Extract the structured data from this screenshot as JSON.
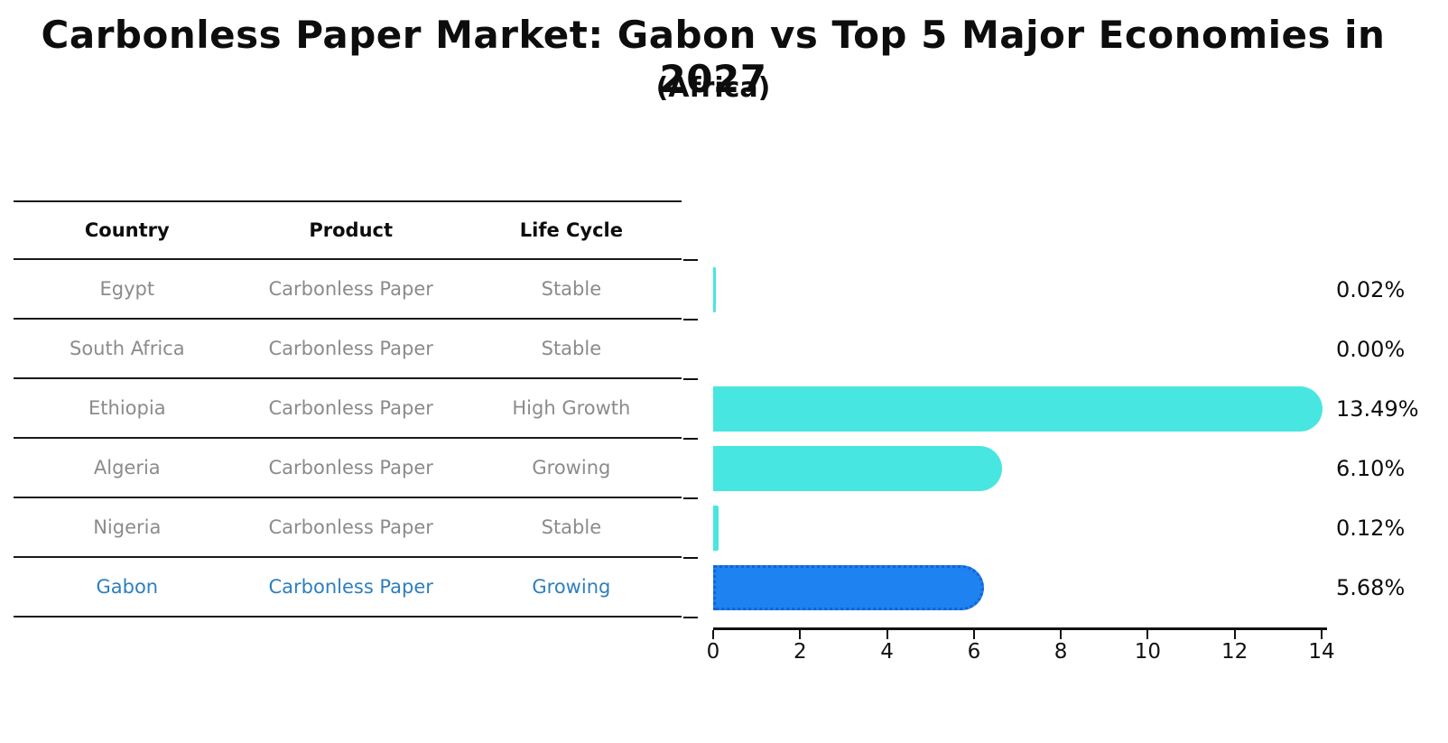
{
  "title": "Carbonless Paper Market: Gabon vs Top 5 Major Economies in 2027",
  "subtitle": "(Africa)",
  "table": {
    "headers": {
      "country": "Country",
      "product": "Product",
      "life_cycle": "Life Cycle"
    },
    "rows": [
      {
        "country": "Egypt",
        "product": "Carbonless Paper",
        "life_cycle": "Stable",
        "highlight": false
      },
      {
        "country": "South Africa",
        "product": "Carbonless Paper",
        "life_cycle": "Stable",
        "highlight": false
      },
      {
        "country": "Ethiopia",
        "product": "Carbonless Paper",
        "life_cycle": "High Growth",
        "highlight": false
      },
      {
        "country": "Algeria",
        "product": "Carbonless Paper",
        "life_cycle": "Growing",
        "highlight": false
      },
      {
        "country": "Nigeria",
        "product": "Carbonless Paper",
        "life_cycle": "Stable",
        "highlight": false
      },
      {
        "country": "Gabon",
        "product": "Carbonless Paper",
        "life_cycle": "Growing",
        "highlight": true
      }
    ]
  },
  "chart_data": {
    "type": "bar",
    "orientation": "horizontal",
    "title": "Carbonless Paper Market: Gabon vs Top 5 Major Economies in 2027 (Africa)",
    "categories": [
      "Egypt",
      "South Africa",
      "Ethiopia",
      "Algeria",
      "Nigeria",
      "Gabon"
    ],
    "values": [
      0.02,
      0.0,
      13.49,
      6.1,
      0.12,
      5.68
    ],
    "value_labels": [
      "0.02%",
      "0.00%",
      "13.49%",
      "6.10%",
      "0.12%",
      "5.68%"
    ],
    "xlim": [
      0,
      14
    ],
    "x_ticks": [
      "0",
      "2",
      "4",
      "6",
      "8",
      "10",
      "12",
      "14"
    ],
    "highlight_index": 5,
    "grid": false,
    "legend": "none"
  },
  "colors": {
    "bar_default": "#48e6e0",
    "bar_highlight": "#1e82f0",
    "bar_highlight_border": "#1464d2",
    "highlight_text": "#2e7fbe",
    "row_text": "#8b8b8b",
    "heading_text": "#0d0d0d",
    "axis": "#111111"
  }
}
